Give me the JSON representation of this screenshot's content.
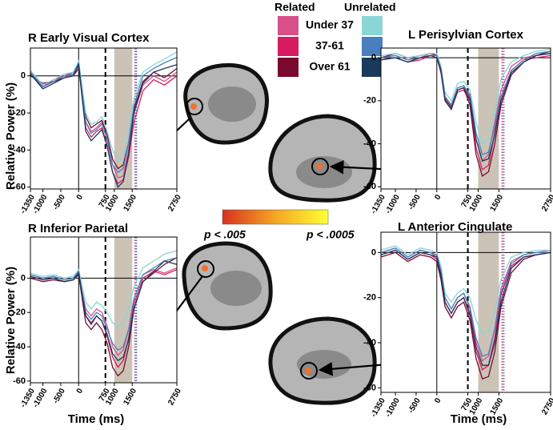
{
  "legend": {
    "groups": [
      "Related",
      "Unrelated"
    ],
    "rows": [
      "Under 37",
      "37-61",
      "Over 61"
    ],
    "colors": [
      [
        "#d9508a",
        "#d81b60",
        "#7a0a2e"
      ],
      [
        "#8ad6d6",
        "#4a7fbf",
        "#1a3a5c"
      ]
    ]
  },
  "colorbar": {
    "low": "p < .005",
    "high": "p < .0005",
    "colors": [
      "#d7301f",
      "#f5a623",
      "#ffff33"
    ]
  },
  "chart_data": [
    {
      "type": "line",
      "title": "R Early Visual Cortex",
      "ylabel": "Relative Power (%)",
      "x": [
        -1350,
        -1000,
        -700,
        -400,
        -150,
        0,
        100,
        200,
        350,
        500,
        650,
        800,
        950,
        1100,
        1250,
        1400,
        1550,
        1800,
        2100,
        2400,
        2750
      ],
      "xlim": [
        -1350,
        2750
      ],
      "xticks": [
        -1350,
        -1000,
        -500,
        0,
        750,
        1000,
        1500,
        2750
      ],
      "ylim": [
        -61,
        15
      ],
      "yticks": [
        0,
        -20,
        -40,
        -60
      ],
      "shade": [
        1000,
        1500
      ],
      "dashed": 750,
      "dotted": [
        {
          "value": 1580,
          "color": "#c2185b"
        },
        {
          "value": 1620,
          "color": "#3f6fb5"
        }
      ],
      "series": [
        {
          "color": "#d9508a",
          "values": [
            2,
            -5,
            -3,
            -1,
            1,
            6,
            -10,
            -25,
            -30,
            -28,
            -25,
            -35,
            -48,
            -55,
            -54,
            -40,
            -20,
            -5,
            0,
            -3,
            2
          ]
        },
        {
          "color": "#d81b60",
          "values": [
            1,
            -6,
            -2,
            0,
            2,
            5,
            -12,
            -28,
            -33,
            -30,
            -28,
            -38,
            -52,
            -58,
            -56,
            -44,
            -25,
            -8,
            -2,
            -5,
            0
          ]
        },
        {
          "color": "#7a0a2e",
          "values": [
            0,
            -4,
            -3,
            -1,
            0,
            4,
            -8,
            -22,
            -28,
            -26,
            -24,
            -32,
            -45,
            -50,
            -48,
            -36,
            -18,
            -3,
            2,
            -1,
            4
          ]
        },
        {
          "color": "#8ad6d6",
          "values": [
            3,
            -5,
            -2,
            1,
            2,
            8,
            -6,
            -20,
            -26,
            -25,
            -22,
            -30,
            -40,
            -46,
            -44,
            -30,
            -12,
            2,
            6,
            9,
            13
          ]
        },
        {
          "color": "#4a7fbf",
          "values": [
            2,
            -6,
            -3,
            0,
            1,
            7,
            -9,
            -25,
            -31,
            -29,
            -26,
            -34,
            -48,
            -52,
            -50,
            -36,
            -16,
            0,
            4,
            7,
            10
          ]
        },
        {
          "color": "#1a3a5c",
          "values": [
            1,
            -7,
            -4,
            -1,
            0,
            6,
            -12,
            -30,
            -35,
            -32,
            -29,
            -38,
            -52,
            -60,
            -57,
            -42,
            -20,
            -4,
            2,
            4,
            6
          ]
        }
      ]
    },
    {
      "type": "line",
      "title": "L Perisylvian Cortex",
      "x": [
        -1350,
        -1000,
        -700,
        -400,
        -150,
        0,
        100,
        200,
        350,
        500,
        650,
        800,
        950,
        1100,
        1250,
        1400,
        1550,
        1800,
        2100,
        2400,
        2750
      ],
      "xlim": [
        -1350,
        2750
      ],
      "xticks": [
        -1350,
        -1000,
        -500,
        0,
        750,
        1000,
        1500,
        2750
      ],
      "ylim": [
        -61,
        4.5
      ],
      "yticks": [
        0,
        -20,
        -40,
        -60
      ],
      "shade": [
        1000,
        1500
      ],
      "dashed": 750,
      "dotted": [
        {
          "value": 1580,
          "color": "#c2185b"
        },
        {
          "value": 1620,
          "color": "#3f6fb5"
        }
      ],
      "series": [
        {
          "color": "#d9508a",
          "values": [
            0,
            1,
            -1,
            0,
            2,
            1,
            -5,
            -18,
            -22,
            -14,
            -13,
            -18,
            -38,
            -48,
            -45,
            -30,
            -15,
            -4,
            0,
            1,
            2
          ]
        },
        {
          "color": "#d81b60",
          "values": [
            -1,
            0,
            -2,
            -1,
            1,
            0,
            -7,
            -20,
            -24,
            -16,
            -15,
            -20,
            -42,
            -52,
            -50,
            -35,
            -18,
            -6,
            -1,
            0,
            1
          ]
        },
        {
          "color": "#7a0a2e",
          "values": [
            0,
            2,
            0,
            1,
            2,
            1,
            -6,
            -19,
            -23,
            -15,
            -14,
            -22,
            -45,
            -55,
            -53,
            -40,
            -22,
            -8,
            -2,
            1,
            3
          ]
        },
        {
          "color": "#8ad6d6",
          "values": [
            1,
            2,
            0,
            1,
            2,
            2,
            -4,
            -16,
            -20,
            -12,
            -11,
            -15,
            -30,
            -40,
            -38,
            -25,
            -10,
            -2,
            1,
            3,
            4
          ]
        },
        {
          "color": "#4a7fbf",
          "values": [
            0,
            1,
            -1,
            0,
            1,
            1,
            -5,
            -18,
            -22,
            -14,
            -13,
            -17,
            -35,
            -45,
            -44,
            -32,
            -18,
            -6,
            -1,
            2,
            3
          ]
        },
        {
          "color": "#1a3a5c",
          "values": [
            -1,
            0,
            -2,
            0,
            1,
            0,
            -6,
            -20,
            -24,
            -15,
            -14,
            -19,
            -38,
            -48,
            -47,
            -36,
            -20,
            -7,
            -2,
            1,
            2
          ]
        }
      ]
    },
    {
      "type": "line",
      "title": "R Inferior Parietal",
      "ylabel": "Relative Power (%)",
      "xlabel": "Time (ms)",
      "x": [
        -1350,
        -1000,
        -700,
        -400,
        -150,
        0,
        100,
        200,
        350,
        500,
        650,
        800,
        950,
        1100,
        1250,
        1400,
        1550,
        1800,
        2100,
        2400,
        2750
      ],
      "xlim": [
        -1350,
        2750
      ],
      "xticks": [
        -1350,
        -1000,
        -500,
        0,
        750,
        1000,
        1500,
        2750
      ],
      "ylim": [
        -61,
        24
      ],
      "yticks": [
        0,
        -20,
        -40,
        -60
      ],
      "shade": [
        1000,
        1500
      ],
      "dashed": 750,
      "dotted": [
        {
          "value": 1580,
          "color": "#c2185b"
        },
        {
          "value": 1620,
          "color": "#3f6fb5"
        }
      ],
      "series": [
        {
          "color": "#d9508a",
          "values": [
            2,
            0,
            1,
            -1,
            0,
            4,
            -8,
            -18,
            -22,
            -18,
            -20,
            -28,
            -40,
            -45,
            -42,
            -30,
            -12,
            2,
            5,
            3,
            6
          ]
        },
        {
          "color": "#d81b60",
          "values": [
            1,
            -1,
            0,
            -2,
            -1,
            3,
            -10,
            -22,
            -26,
            -22,
            -25,
            -34,
            -46,
            -52,
            -48,
            -35,
            -15,
            0,
            4,
            2,
            5
          ]
        },
        {
          "color": "#7a0a2e",
          "values": [
            0,
            -2,
            -1,
            -2,
            -1,
            2,
            -12,
            -26,
            -30,
            -26,
            -30,
            -38,
            -52,
            -57,
            -54,
            -40,
            -18,
            -2,
            3,
            8,
            12
          ]
        },
        {
          "color": "#8ad6d6",
          "values": [
            3,
            1,
            2,
            0,
            1,
            5,
            -5,
            -14,
            -18,
            -14,
            -16,
            -20,
            -26,
            -28,
            -26,
            -18,
            -5,
            6,
            10,
            14,
            16
          ]
        },
        {
          "color": "#4a7fbf",
          "values": [
            2,
            0,
            1,
            -1,
            0,
            4,
            -8,
            -20,
            -24,
            -20,
            -22,
            -30,
            -38,
            -42,
            -40,
            -30,
            -12,
            2,
            6,
            10,
            12
          ]
        },
        {
          "color": "#1a3a5c",
          "values": [
            1,
            -1,
            0,
            -2,
            -1,
            3,
            -10,
            -22,
            -27,
            -22,
            -25,
            -33,
            -44,
            -48,
            -46,
            -36,
            -18,
            -2,
            4,
            10,
            8
          ]
        }
      ]
    },
    {
      "type": "line",
      "title": "L Anterior Cingulate",
      "xlabel": "Time (ms)",
      "x": [
        -1350,
        -1000,
        -700,
        -400,
        -150,
        0,
        100,
        200,
        350,
        500,
        650,
        800,
        950,
        1100,
        1250,
        1400,
        1550,
        1800,
        2100,
        2400,
        2750
      ],
      "xlim": [
        -1350,
        2750
      ],
      "xticks": [
        -1350,
        -1000,
        -500,
        0,
        750,
        1000,
        1500,
        2750
      ],
      "ylim": [
        -62,
        9
      ],
      "yticks": [
        0,
        -20,
        -40,
        -60
      ],
      "shade": [
        1000,
        1500
      ],
      "dashed": 750,
      "dotted": [
        {
          "value": 1580,
          "color": "#c2185b"
        },
        {
          "value": 1620,
          "color": "#3f6fb5"
        }
      ],
      "series": [
        {
          "color": "#d9508a",
          "values": [
            0,
            2,
            -2,
            1,
            0,
            -2,
            -8,
            -20,
            -25,
            -20,
            -18,
            -25,
            -40,
            -48,
            -46,
            -34,
            -16,
            -4,
            -1,
            0,
            1
          ]
        },
        {
          "color": "#d81b60",
          "values": [
            -1,
            1,
            -3,
            0,
            -1,
            -3,
            -10,
            -22,
            -27,
            -22,
            -20,
            -28,
            -44,
            -52,
            -50,
            -38,
            -19,
            -6,
            -2,
            -1,
            0
          ]
        },
        {
          "color": "#7a0a2e",
          "values": [
            -2,
            0,
            -4,
            -1,
            -2,
            -4,
            -12,
            -24,
            -29,
            -24,
            -22,
            -30,
            -47,
            -56,
            -55,
            -44,
            -24,
            -9,
            -3,
            -1,
            0
          ]
        },
        {
          "color": "#8ad6d6",
          "values": [
            1,
            3,
            -1,
            2,
            1,
            0,
            -6,
            -18,
            -22,
            -18,
            -16,
            -20,
            -30,
            -36,
            -35,
            -26,
            -12,
            -2,
            0,
            1,
            1
          ]
        },
        {
          "color": "#4a7fbf",
          "values": [
            0,
            2,
            -2,
            1,
            0,
            -1,
            -8,
            -20,
            -25,
            -20,
            -18,
            -24,
            -38,
            -46,
            -45,
            -34,
            -18,
            -5,
            -1,
            0,
            0
          ]
        },
        {
          "color": "#1a3a5c",
          "values": [
            -1,
            1,
            -3,
            0,
            -1,
            -2,
            -10,
            -22,
            -27,
            -22,
            -20,
            -27,
            -42,
            -50,
            -50,
            -40,
            -22,
            -7,
            -2,
            -1,
            0
          ]
        }
      ]
    }
  ]
}
